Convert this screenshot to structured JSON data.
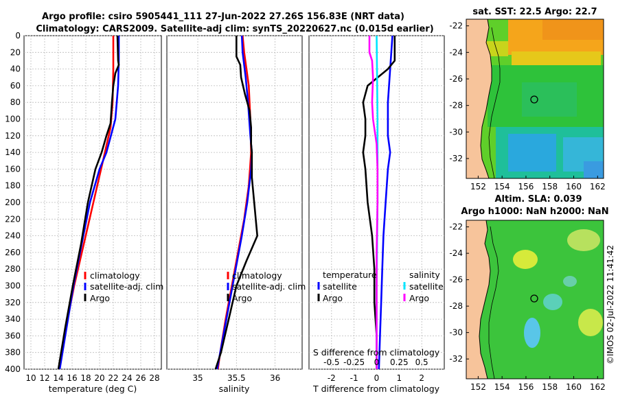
{
  "title": {
    "line1": "Argo profile: csiro 5905441_111 27-Jun-2022 27.26S 156.83E (NRT data)",
    "line2": "Climatology: CARS2009. Satellite-adj clim: synTS_20220627.nc (0.015d earlier)"
  },
  "stamp": "©IMOS 02-Jul-2022 11:41:42",
  "colors": {
    "climatology": "#ff0000",
    "satellite": "#0000ff",
    "argo": "#000000",
    "sal_sat": "#00e5ff",
    "sal_argo": "#ff00ff"
  },
  "chart_data": [
    {
      "type": "line",
      "id": "temperature",
      "xlabel": "temperature (deg C)",
      "ylabel": "",
      "xlim": [
        9,
        29
      ],
      "ylim": [
        0,
        400
      ],
      "x_ticks": [
        "10",
        "12",
        "14",
        "16",
        "18",
        "20",
        "22",
        "24",
        "26",
        "28"
      ],
      "y_ticks": [
        "0",
        "20",
        "40",
        "60",
        "80",
        "100",
        "120",
        "140",
        "160",
        "180",
        "200",
        "220",
        "240",
        "260",
        "280",
        "300",
        "320",
        "340",
        "360",
        "380",
        "400"
      ],
      "grid": true,
      "legend": [
        "climatology",
        "satellite-adj. clim",
        "Argo"
      ],
      "legend_position": "lower-right",
      "series": [
        {
          "name": "climatology",
          "depth": [
            0,
            40,
            80,
            110,
            150,
            200,
            250,
            300,
            350,
            400
          ],
          "values": [
            22.0,
            22.0,
            21.9,
            21.6,
            20.5,
            19.1,
            17.7,
            16.3,
            15.1,
            14.1
          ]
        },
        {
          "name": "satellite-adj. clim",
          "depth": [
            0,
            30,
            60,
            100,
            140,
            160,
            200,
            250,
            300,
            350,
            400
          ],
          "values": [
            22.8,
            22.8,
            22.7,
            22.3,
            21.0,
            20.0,
            18.6,
            17.4,
            16.2,
            15.2,
            14.2
          ]
        },
        {
          "name": "Argo",
          "depth": [
            0,
            30,
            35,
            45,
            60,
            80,
            105,
            120,
            140,
            160,
            200,
            250,
            300,
            350,
            400
          ],
          "values": [
            22.6,
            22.7,
            22.8,
            22.3,
            22.0,
            21.8,
            21.6,
            21.0,
            20.3,
            19.4,
            18.3,
            17.3,
            16.1,
            15.0,
            14.0
          ]
        }
      ]
    },
    {
      "type": "line",
      "id": "salinity",
      "xlabel": "salinity",
      "ylabel": "",
      "xlim": [
        34.6,
        36.35
      ],
      "ylim": [
        0,
        400
      ],
      "x_ticks": [
        "35",
        "35.5",
        "36"
      ],
      "grid": true,
      "legend": [
        "climatology",
        "satellite-adj. clim",
        "Argo"
      ],
      "legend_position": "lower-right",
      "series": [
        {
          "name": "climatology",
          "depth": [
            0,
            20,
            60,
            100,
            140,
            180,
            220,
            260,
            300,
            340,
            380,
            400
          ],
          "values": [
            35.58,
            35.6,
            35.66,
            35.68,
            35.69,
            35.66,
            35.6,
            35.52,
            35.44,
            35.36,
            35.29,
            35.26
          ]
        },
        {
          "name": "satellite-adj. clim",
          "depth": [
            0,
            20,
            50,
            80,
            120,
            140,
            160,
            200,
            240,
            280,
            320,
            360,
            400
          ],
          "values": [
            35.57,
            35.58,
            35.62,
            35.65,
            35.68,
            35.7,
            35.69,
            35.64,
            35.57,
            35.49,
            35.41,
            35.33,
            35.25
          ]
        },
        {
          "name": "Argo",
          "depth": [
            0,
            25,
            35,
            50,
            70,
            90,
            110,
            130,
            140,
            170,
            200,
            240,
            270,
            300,
            340,
            380,
            400
          ],
          "values": [
            35.5,
            35.5,
            35.55,
            35.56,
            35.61,
            35.67,
            35.69,
            35.69,
            35.7,
            35.7,
            35.73,
            35.77,
            35.63,
            35.5,
            35.4,
            35.3,
            35.23
          ]
        }
      ]
    },
    {
      "type": "line",
      "id": "difference",
      "xlabel": "T difference from climatology",
      "x2label": "S difference from climatology",
      "xlim": [
        -3,
        3
      ],
      "x2lim": [
        -0.75,
        0.75
      ],
      "ylim": [
        0,
        400
      ],
      "x_ticks": [
        "-2",
        "-1",
        "0",
        "1",
        "2"
      ],
      "x2_ticks": [
        "-0.5",
        "-0.25",
        "0",
        "0.25",
        "0.5"
      ],
      "grid": true,
      "legend_temperature": {
        "title": "temperature",
        "items": [
          "satellite",
          "Argo"
        ]
      },
      "legend_salinity": {
        "title": "salinity",
        "items": [
          "satellite",
          "Argo"
        ]
      },
      "series": [
        {
          "name": "temperature satellite",
          "axis": "T",
          "depth": [
            0,
            40,
            80,
            120,
            140,
            160,
            200,
            240,
            280,
            320,
            360,
            400
          ],
          "values": [
            0.7,
            0.6,
            0.5,
            0.5,
            0.6,
            0.5,
            0.4,
            0.3,
            0.25,
            0.2,
            0.15,
            0.1
          ]
        },
        {
          "name": "temperature Argo",
          "axis": "T",
          "depth": [
            0,
            30,
            40,
            60,
            80,
            100,
            120,
            140,
            160,
            200,
            240,
            280,
            320,
            360,
            400
          ],
          "values": [
            0.8,
            0.8,
            0.5,
            -0.4,
            -0.6,
            -0.5,
            -0.5,
            -0.6,
            -0.5,
            -0.4,
            -0.2,
            -0.1,
            -0.1,
            0.0,
            0.0
          ]
        },
        {
          "name": "salinity satellite",
          "axis": "S",
          "depth": [
            0,
            100,
            200,
            300,
            400
          ],
          "values": [
            0.0,
            0.01,
            0.01,
            0.0,
            0.0
          ]
        },
        {
          "name": "salinity Argo",
          "axis": "S",
          "depth": [
            0,
            20,
            30,
            50,
            80,
            100,
            130,
            160,
            200,
            260,
            300,
            360,
            400
          ],
          "values": [
            -0.08,
            -0.08,
            -0.05,
            -0.04,
            -0.05,
            -0.04,
            0.0,
            0.01,
            0.01,
            0.0,
            0.0,
            0.0,
            0.0
          ]
        }
      ]
    },
    {
      "type": "heatmap",
      "id": "sst_map",
      "title": "sat. SST: 22.5 Argo: 22.7",
      "x_ticks": [
        "152",
        "154",
        "156",
        "158",
        "160",
        "162"
      ],
      "y_ticks": [
        "-22",
        "-24",
        "-26",
        "-28",
        "-30",
        "-32"
      ],
      "xlim": [
        151,
        162.5
      ],
      "ylim": [
        -33.5,
        -21.5
      ],
      "marker": {
        "lon": 156.83,
        "lat": -27.26
      }
    },
    {
      "type": "heatmap",
      "id": "sla_map",
      "title_line1": "Altim. SLA: 0.039",
      "title_line2": "Argo h1000: NaN h2000: NaN",
      "x_ticks": [
        "152",
        "154",
        "156",
        "158",
        "160",
        "162"
      ],
      "y_ticks": [
        "-22",
        "-24",
        "-26",
        "-28",
        "-30",
        "-32"
      ],
      "xlim": [
        151,
        162.5
      ],
      "ylim": [
        -33.5,
        -21.5
      ],
      "marker": {
        "lon": 156.83,
        "lat": -27.26
      }
    }
  ]
}
